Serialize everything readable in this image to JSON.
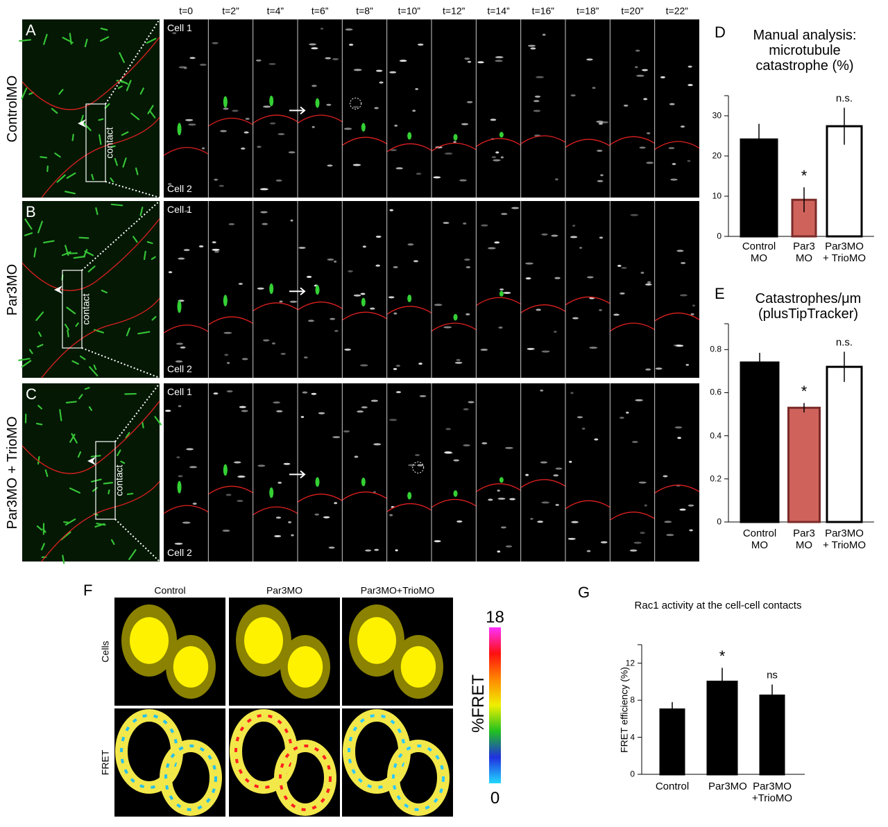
{
  "timelapse": {
    "time_points": [
      "t=0",
      "t=2”",
      "t=4”",
      "t=6”",
      "t=8”",
      "t=10”",
      "t=12”",
      "t=14”",
      "t=16”",
      "t=18”",
      "t=20”",
      "t=22”"
    ],
    "rows": [
      {
        "letter": "A",
        "condition": "ControlMO",
        "contact": "contact",
        "cell_top": "Cell 1",
        "cell_bottom": "Cell 2"
      },
      {
        "letter": "B",
        "condition": "Par3MO",
        "contact": "contact",
        "cell_top": "Cell 1",
        "cell_bottom": "Cell 2"
      },
      {
        "letter": "C",
        "condition": "Par3MO + TrioMO",
        "contact": "contact",
        "cell_top": "Cell 1",
        "cell_bottom": "Cell 2"
      }
    ]
  },
  "fret_images": {
    "letter": "F",
    "columns": [
      "Control",
      "Par3MO",
      "Par3MO+TrioMO"
    ],
    "rows": [
      "Cells",
      "FRET"
    ],
    "colorbar": {
      "max": 18,
      "min": 0,
      "label": "%FRET"
    }
  },
  "chart_data": [
    {
      "type": "bar",
      "letter": "D",
      "title": "Manual analysis: microtubule catastrophe (%)",
      "categories": [
        "Control MO",
        "Par3 MO",
        "Par3MO + TrioMO"
      ],
      "values": [
        24.1,
        9.1,
        27.4
      ],
      "errors": [
        3.9,
        3.1,
        4.6
      ],
      "colors": [
        "#000000",
        "#cf635c",
        "#ffffff"
      ],
      "edge_colors": [
        "#000000",
        "#7a2b28",
        "#000000"
      ],
      "ylim": [
        0,
        35
      ],
      "yticks": [
        0,
        10,
        20,
        30
      ],
      "annotations": [
        {
          "category": "Par3 MO",
          "text": "*"
        },
        {
          "category": "Par3MO + TrioMO",
          "text": "n.s."
        }
      ]
    },
    {
      "type": "bar",
      "letter": "E",
      "title": "Catastrophes/μm (plusTipTracker)",
      "categories": [
        "Control MO",
        "Par3 MO",
        "Par3MO + TrioMO"
      ],
      "values": [
        0.74,
        0.53,
        0.72
      ],
      "errors": [
        0.045,
        0.022,
        0.07
      ],
      "colors": [
        "#000000",
        "#cf635c",
        "#ffffff"
      ],
      "edge_colors": [
        "#000000",
        "#7a2b28",
        "#000000"
      ],
      "ylim": [
        0,
        0.92
      ],
      "yticks": [
        0,
        0.2,
        0.4,
        0.6,
        0.8
      ],
      "annotations": [
        {
          "category": "Par3 MO",
          "text": "*"
        },
        {
          "category": "Par3MO + TrioMO",
          "text": "n.s."
        }
      ]
    },
    {
      "type": "bar",
      "letter": "G",
      "title": "Rac1 activity at the cell-cell contacts",
      "y_label": "FRET efficiency (%)",
      "categories": [
        "Control",
        "Par3MO",
        "Par3MO +TrioMO"
      ],
      "values": [
        7.0,
        10.0,
        8.5
      ],
      "errors": [
        0.8,
        1.5,
        1.2
      ],
      "colors": [
        "#000000",
        "#000000",
        "#000000"
      ],
      "edge_colors": [
        "#000000",
        "#000000",
        "#000000"
      ],
      "ylim": [
        0,
        14
      ],
      "yticks": [
        0,
        4,
        8,
        12
      ],
      "annotations": [
        {
          "category": "Par3MO",
          "text": "*"
        },
        {
          "category": "Par3MO +TrioMO",
          "text": "ns"
        }
      ]
    }
  ]
}
